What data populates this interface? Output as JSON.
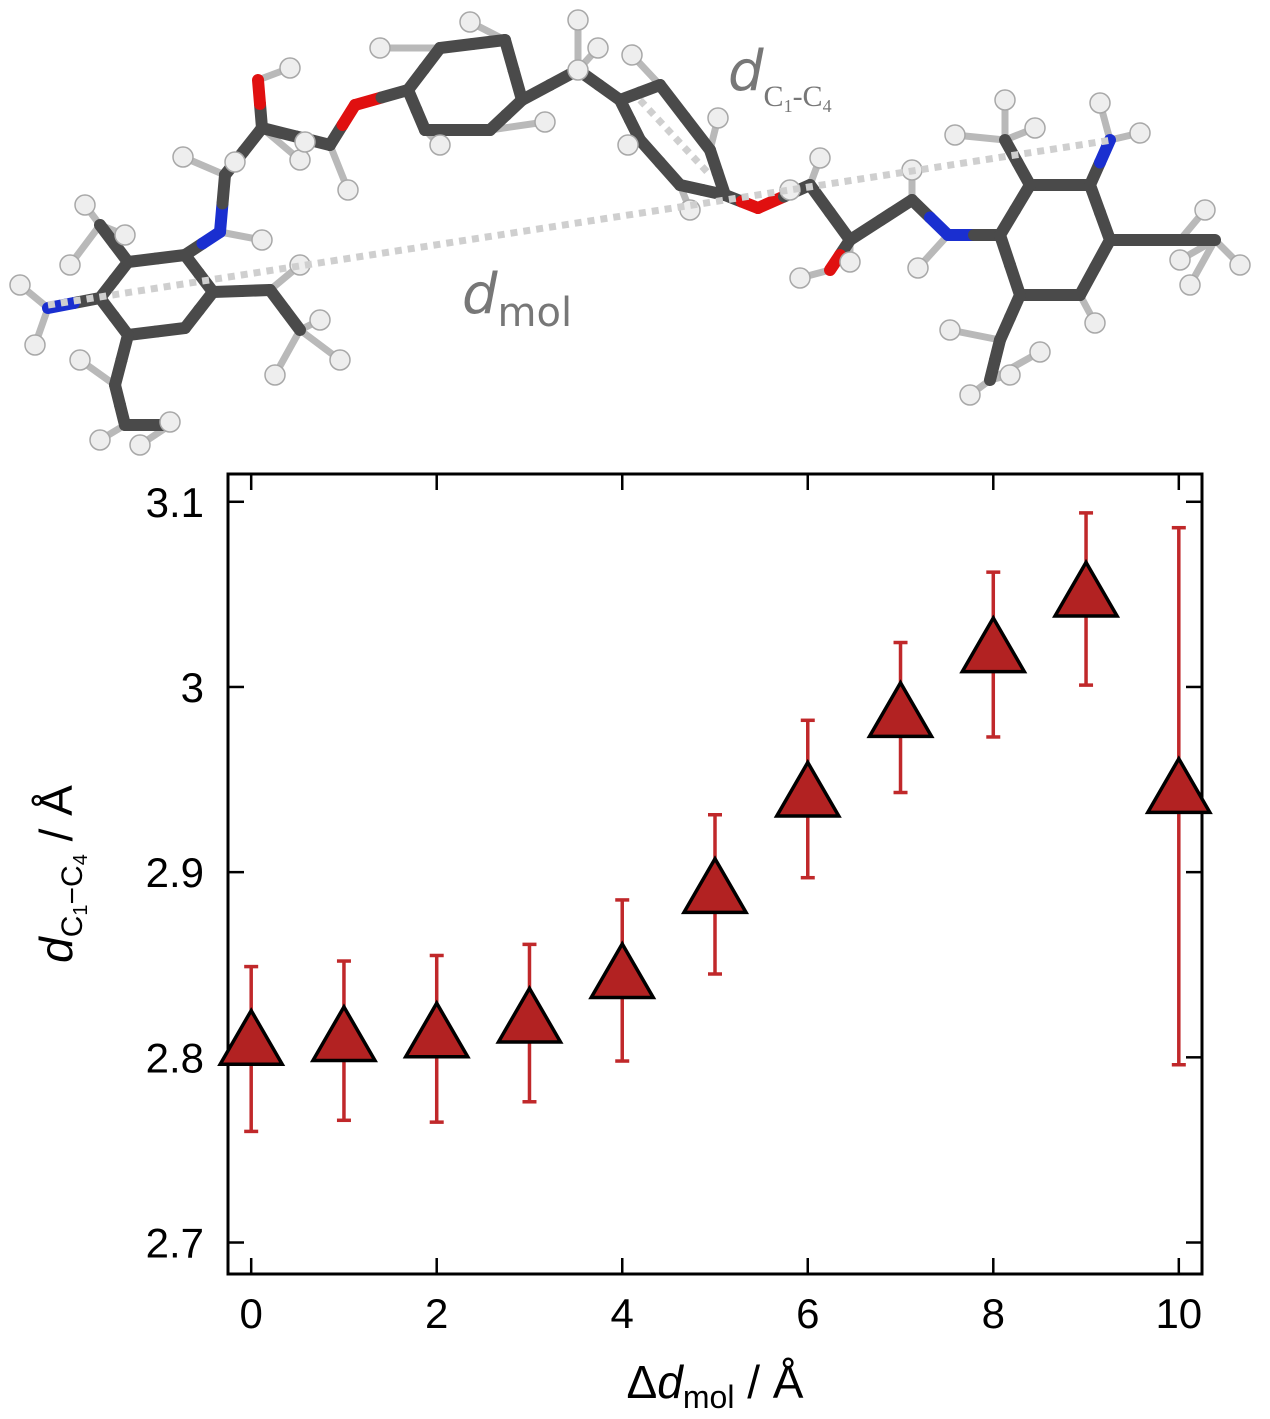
{
  "molecule": {
    "label_dmol": {
      "main": "d",
      "sub": "mol"
    },
    "label_dc1c4": {
      "main": "d",
      "sub": "C",
      "sub1": "1",
      "sep": "-C",
      "sub4": "4"
    },
    "colors": {
      "carbon": "#4a4a4a",
      "hydrogen": "#eeeeee",
      "nitrogen": "#1a2fd0",
      "oxygen": "#e01010",
      "distance_line": "#cfcfcf"
    }
  },
  "chart_data": {
    "type": "scatter",
    "x": [
      0,
      1,
      2,
      3,
      4,
      5,
      6,
      7,
      8,
      9,
      10
    ],
    "y": [
      2.806,
      2.808,
      2.81,
      2.818,
      2.842,
      2.888,
      2.94,
      2.983,
      3.018,
      3.048,
      2.942
    ],
    "y_err_low": [
      2.76,
      2.766,
      2.765,
      2.776,
      2.798,
      2.845,
      2.897,
      2.943,
      2.973,
      3.001,
      2.796
    ],
    "y_err_high": [
      2.849,
      2.852,
      2.855,
      2.861,
      2.885,
      2.931,
      2.982,
      3.024,
      3.062,
      3.094,
      3.086
    ],
    "xlim": [
      -0.25,
      10.25
    ],
    "ylim": [
      2.683,
      3.115
    ],
    "xticks": [
      "0",
      "2",
      "4",
      "6",
      "8",
      "10"
    ],
    "xtick_values": [
      0,
      2,
      4,
      6,
      8,
      10
    ],
    "yticks": [
      "2.7",
      "2.8",
      "2.9",
      "3",
      "3.1"
    ],
    "ytick_values": [
      2.7,
      2.8,
      2.9,
      3.0,
      3.1
    ],
    "xlabel": {
      "delta": "Δ",
      "main": "d",
      "sub": "mol",
      "unit": " / Å"
    },
    "ylabel": {
      "main": "d",
      "sub": "C",
      "sub1": "1",
      "sep": "−C",
      "sub4": "4",
      "unit": " / Å"
    },
    "marker": "triangle-up",
    "colors": {
      "marker_fill": "#b22222",
      "marker_edge": "#000000",
      "error_bar": "#c0282a"
    },
    "grid": false,
    "legend": "none"
  }
}
